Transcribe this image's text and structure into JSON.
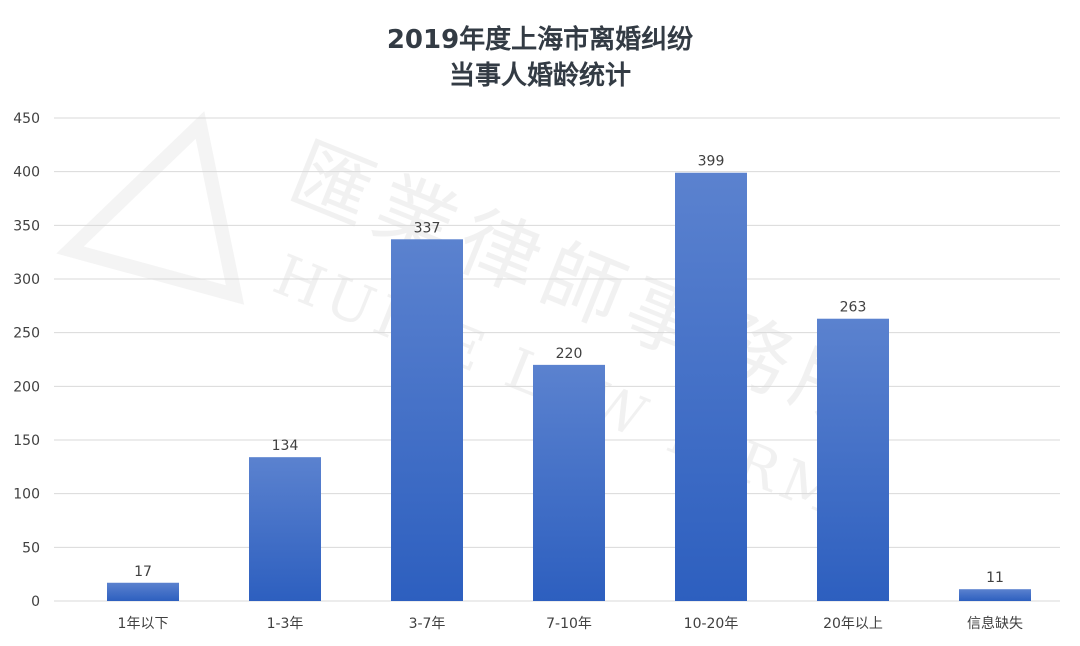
{
  "chart_data": {
    "type": "bar",
    "title": [
      "2019年度上海市离婚纠纷",
      "当事人婚龄统计"
    ],
    "categories": [
      "1年以下",
      "1-3年",
      "3-7年",
      "7-10年",
      "10-20年",
      "20年以上",
      "信息缺失"
    ],
    "values": [
      17,
      134,
      337,
      220,
      399,
      263,
      11
    ],
    "ylim": [
      0,
      450
    ],
    "yticks": [
      0,
      50,
      100,
      150,
      200,
      250,
      300,
      350,
      400,
      450
    ],
    "grid": true,
    "legend": "none",
    "bar_color_top": "#5b82cf",
    "bar_color_bottom": "#2d5fbf"
  },
  "watermark": {
    "cn": "匯業律師事務所",
    "en": "HUIYE LAW FIRM"
  }
}
